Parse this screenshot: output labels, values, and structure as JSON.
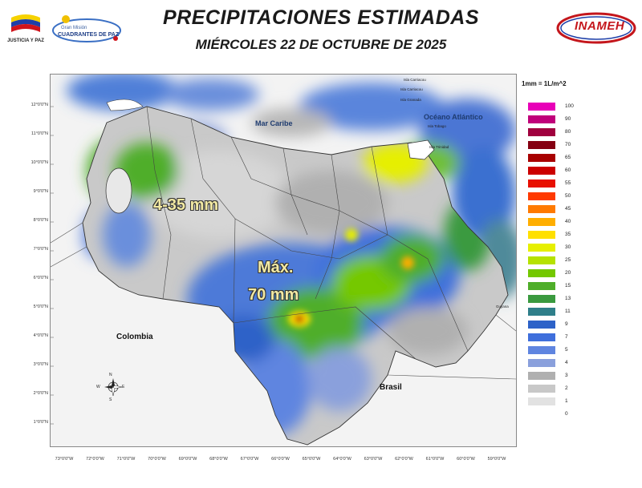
{
  "header": {
    "title": "PRECIPITACIONES ESTIMADAS",
    "date": "MIÉRCOLES 22 DE OCTUBRE DE 2025"
  },
  "logos": {
    "government_caption": "JUSTICIA Y PAZ",
    "mision_line1": "Gran Misión",
    "mision_line2": "CUADRANTES DE PAZ",
    "agency": "INAMEH"
  },
  "map": {
    "labels": {
      "sea": "Mar Caribe",
      "ocean": "Océano Atlántico",
      "colombia": "Colombia",
      "brasil": "Brasil",
      "guyana": "Guyana",
      "trinidad": "Isla Trinidad",
      "tobago": "Isla Tobago",
      "island1": "Isla Carriacou",
      "island2": "Isla Carriacou",
      "island3": "Isla Granada",
      "range_label": "4-35 mm",
      "max_label_line1": "Máx.",
      "max_label_line2": "70 mm"
    },
    "latitude_ticks": [
      "12°0'0\"N",
      "11°0'0\"N",
      "10°0'0\"N",
      "9°0'0\"N",
      "8°0'0\"N",
      "7°0'0\"N",
      "6°0'0\"N",
      "5°0'0\"N",
      "4°0'0\"N",
      "3°0'0\"N",
      "2°0'0\"N",
      "1°0'0\"N"
    ],
    "longitude_ticks": [
      "73°0'0\"W",
      "72°0'0\"W",
      "71°0'0\"W",
      "70°0'0\"W",
      "69°0'0\"W",
      "68°0'0\"W",
      "67°0'0\"W",
      "66°0'0\"W",
      "65°0'0\"W",
      "64°0'0\"W",
      "63°0'0\"W",
      "62°0'0\"W",
      "61°0'0\"W",
      "60°0'0\"W",
      "59°0'0\"W"
    ],
    "compass": {
      "n": "N",
      "s": "S",
      "e": "E",
      "w": "W"
    }
  },
  "legend": {
    "title": "1mm = 1L/m^2",
    "classes": [
      {
        "value": "100",
        "color": "#e800b8"
      },
      {
        "value": "90",
        "color": "#c0007a"
      },
      {
        "value": "80",
        "color": "#a0003e"
      },
      {
        "value": "70",
        "color": "#850012"
      },
      {
        "value": "65",
        "color": "#a80000"
      },
      {
        "value": "60",
        "color": "#cc0000"
      },
      {
        "value": "55",
        "color": "#e81000"
      },
      {
        "value": "50",
        "color": "#ff3a00"
      },
      {
        "value": "45",
        "color": "#ff7a00"
      },
      {
        "value": "40",
        "color": "#ffae00"
      },
      {
        "value": "35",
        "color": "#ffe000"
      },
      {
        "value": "30",
        "color": "#e6ef00"
      },
      {
        "value": "25",
        "color": "#b6e200"
      },
      {
        "value": "20",
        "color": "#74c800"
      },
      {
        "value": "15",
        "color": "#4fae2a"
      },
      {
        "value": "13",
        "color": "#3a9a3f"
      },
      {
        "value": "11",
        "color": "#2f7f8a"
      },
      {
        "value": "9",
        "color": "#2d62c8"
      },
      {
        "value": "7",
        "color": "#3f6fdc"
      },
      {
        "value": "5",
        "color": "#5f85e0"
      },
      {
        "value": "4",
        "color": "#8aa0dc"
      },
      {
        "value": "3",
        "color": "#b0b0b0"
      },
      {
        "value": "2",
        "color": "#c8c8c8"
      },
      {
        "value": "1",
        "color": "#e2e2e2"
      },
      {
        "value": "0",
        "color": "#ffffff"
      }
    ]
  }
}
